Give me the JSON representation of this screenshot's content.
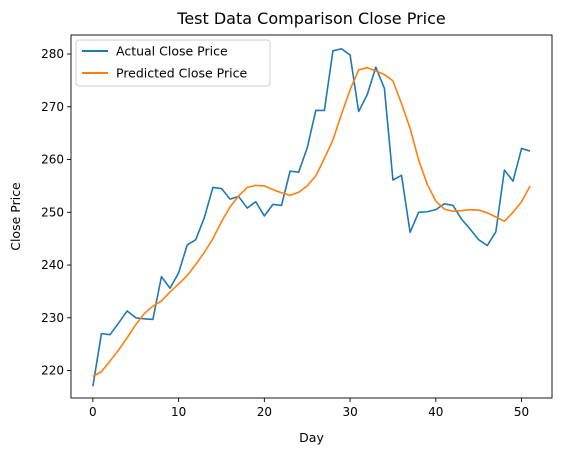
{
  "chart_data": {
    "type": "line",
    "title": "Test Data Comparison Close Price",
    "xlabel": "Day",
    "ylabel": "Close Price",
    "xlim": [
      -2.55,
      53.55
    ],
    "ylim": [
      214.8,
      283.6
    ],
    "xticks": [
      0,
      10,
      20,
      30,
      40,
      50
    ],
    "yticks": [
      220,
      230,
      240,
      250,
      260,
      270,
      280
    ],
    "grid": false,
    "legend_position": "top-left",
    "x": [
      0,
      1,
      2,
      3,
      4,
      5,
      6,
      7,
      8,
      9,
      10,
      11,
      12,
      13,
      14,
      15,
      16,
      17,
      18,
      19,
      20,
      21,
      22,
      23,
      24,
      25,
      26,
      27,
      28,
      29,
      30,
      31,
      32,
      33,
      34,
      35,
      36,
      37,
      38,
      39,
      40,
      41,
      42,
      43,
      44,
      45,
      46,
      47,
      48,
      49,
      50,
      51
    ],
    "series": [
      {
        "name": "Actual Close Price",
        "color": "#1f77b4",
        "values": [
          217.0,
          227.0,
          226.8,
          229.0,
          231.3,
          230.0,
          229.8,
          229.7,
          237.8,
          235.6,
          238.5,
          243.8,
          244.8,
          249.0,
          254.7,
          254.5,
          252.5,
          253.0,
          250.8,
          252.0,
          249.3,
          251.5,
          251.3,
          257.8,
          257.6,
          262.2,
          269.3,
          269.3,
          280.6,
          281.0,
          279.8,
          269.1,
          272.3,
          277.5,
          273.5,
          256.1,
          257.0,
          246.2,
          250.0,
          250.1,
          250.5,
          251.6,
          251.3,
          248.7,
          246.8,
          244.8,
          243.7,
          246.3,
          258.0,
          255.9,
          262.1,
          261.6
        ]
      },
      {
        "name": "Predicted Close Price",
        "color": "#ff7f0e",
        "values": [
          218.9,
          219.8,
          221.8,
          223.9,
          226.2,
          228.7,
          230.8,
          232.2,
          233.2,
          234.9,
          236.4,
          238.0,
          240.1,
          242.4,
          245.0,
          248.2,
          251.0,
          253.1,
          254.7,
          255.1,
          255.0,
          254.3,
          253.7,
          253.2,
          253.8,
          255.0,
          256.9,
          260.2,
          263.7,
          268.6,
          273.2,
          277.0,
          277.4,
          276.8,
          276.1,
          274.9,
          270.6,
          265.9,
          259.9,
          255.3,
          252.1,
          250.6,
          250.2,
          250.3,
          250.5,
          250.4,
          249.9,
          249.1,
          248.3,
          250.0,
          252.0,
          255.0
        ]
      }
    ]
  }
}
